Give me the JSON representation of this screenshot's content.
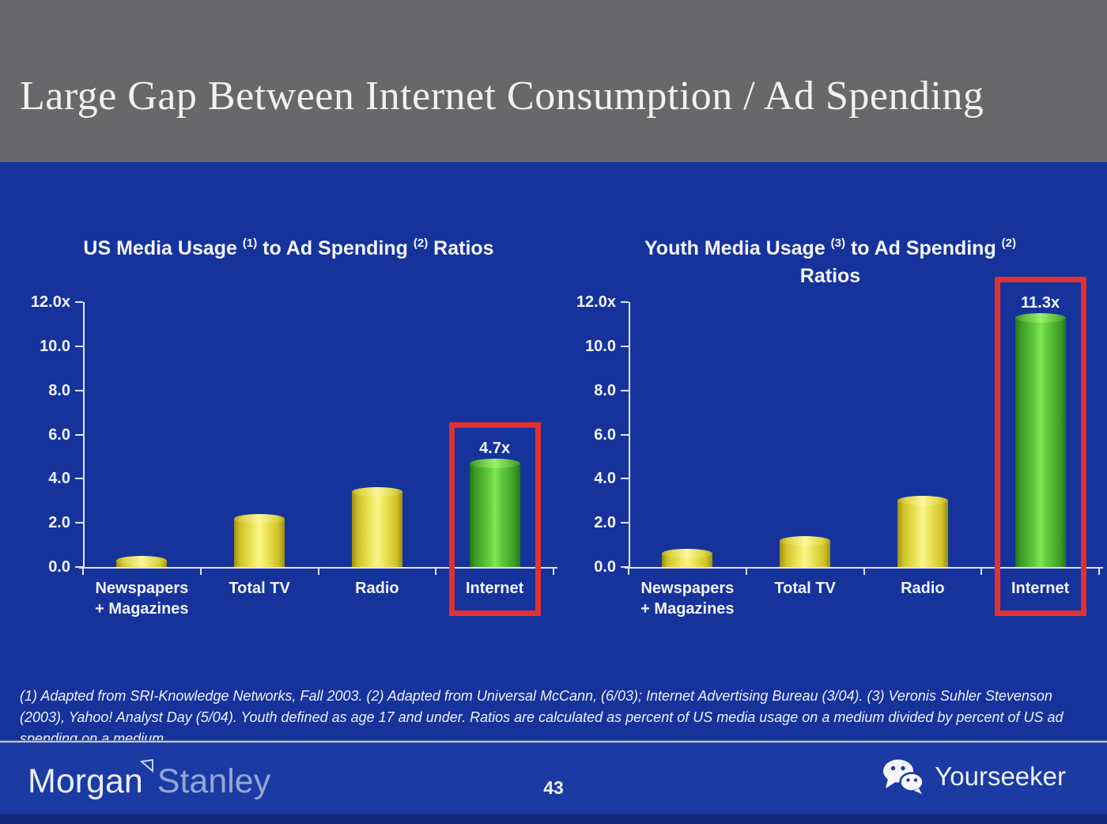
{
  "slide": {
    "title": "Large Gap Between Internet Consumption / Ad Spending",
    "page_number": "43"
  },
  "chart_data": [
    {
      "type": "bar",
      "title": "US Media Usage (1) to Ad Spending (2) Ratios",
      "title_segments": [
        {
          "text": "US Media Usage "
        },
        {
          "text": "(1)",
          "sup": true
        },
        {
          "text": " to Ad Spending "
        },
        {
          "text": "(2)",
          "sup": true
        },
        {
          "text": " Ratios"
        }
      ],
      "categories": [
        "Newspapers\n+ Magazines",
        "Total TV",
        "Radio",
        "Internet"
      ],
      "values": [
        0.3,
        2.2,
        3.4,
        4.7
      ],
      "bar_colors": [
        "yellow",
        "yellow",
        "yellow",
        "green"
      ],
      "data_labels": [
        "",
        "",
        "",
        "4.7x"
      ],
      "highlight_index": 3,
      "ylim": [
        0,
        12
      ],
      "ytick_labels": [
        "12.0x",
        "10.0",
        "8.0",
        "6.0",
        "4.0",
        "2.0",
        "0.0"
      ],
      "ytick_values": [
        12,
        10,
        8,
        6,
        4,
        2,
        0
      ],
      "grid": false,
      "legend": null
    },
    {
      "type": "bar",
      "title": "Youth Media Usage (3) to Ad Spending (2) Ratios",
      "title_segments": [
        {
          "text": "Youth Media Usage "
        },
        {
          "text": "(3)",
          "sup": true
        },
        {
          "text": " to Ad Spending "
        },
        {
          "text": "(2)",
          "sup": true
        },
        {
          "text": "Ratios",
          "newline": true
        }
      ],
      "categories": [
        "Newspapers\n+ Magazines",
        "Total TV",
        "Radio",
        "Internet"
      ],
      "values": [
        0.6,
        1.2,
        3.0,
        11.3
      ],
      "bar_colors": [
        "yellow",
        "yellow",
        "yellow",
        "green"
      ],
      "data_labels": [
        "",
        "",
        "",
        "11.3x"
      ],
      "highlight_index": 3,
      "ylim": [
        0,
        12
      ],
      "ytick_labels": [
        "12.0x",
        "10.0",
        "8.0",
        "6.0",
        "4.0",
        "2.0",
        "0.0"
      ],
      "ytick_values": [
        12,
        10,
        8,
        6,
        4,
        2,
        0
      ],
      "grid": false,
      "legend": null
    }
  ],
  "footnote": "(1) Adapted from SRI-Knowledge Networks, Fall 2003.  (2) Adapted from Universal McCann, (6/03); Internet Advertising Bureau (3/04). (3) Veronis Suhler Stevenson (2003), Yahoo! Analyst Day (5/04).  Youth defined as age 17 and under.  Ratios are calculated as percent of US media usage on a medium divided by percent of US ad spending on a medium.",
  "footer": {
    "brand_left_part1": "Morgan",
    "brand_left_part2": "Stanley",
    "brand_right": "Yourseeker"
  },
  "colors": {
    "background_blue": "#16339c",
    "header_gray": "#68686a",
    "footer_blue": "#1b3aa3",
    "bar_yellow": "#efe44c",
    "bar_green": "#55c139",
    "highlight_red": "#e13232",
    "axis_white": "#dde4f8",
    "title_white": "#f1f1f1"
  }
}
